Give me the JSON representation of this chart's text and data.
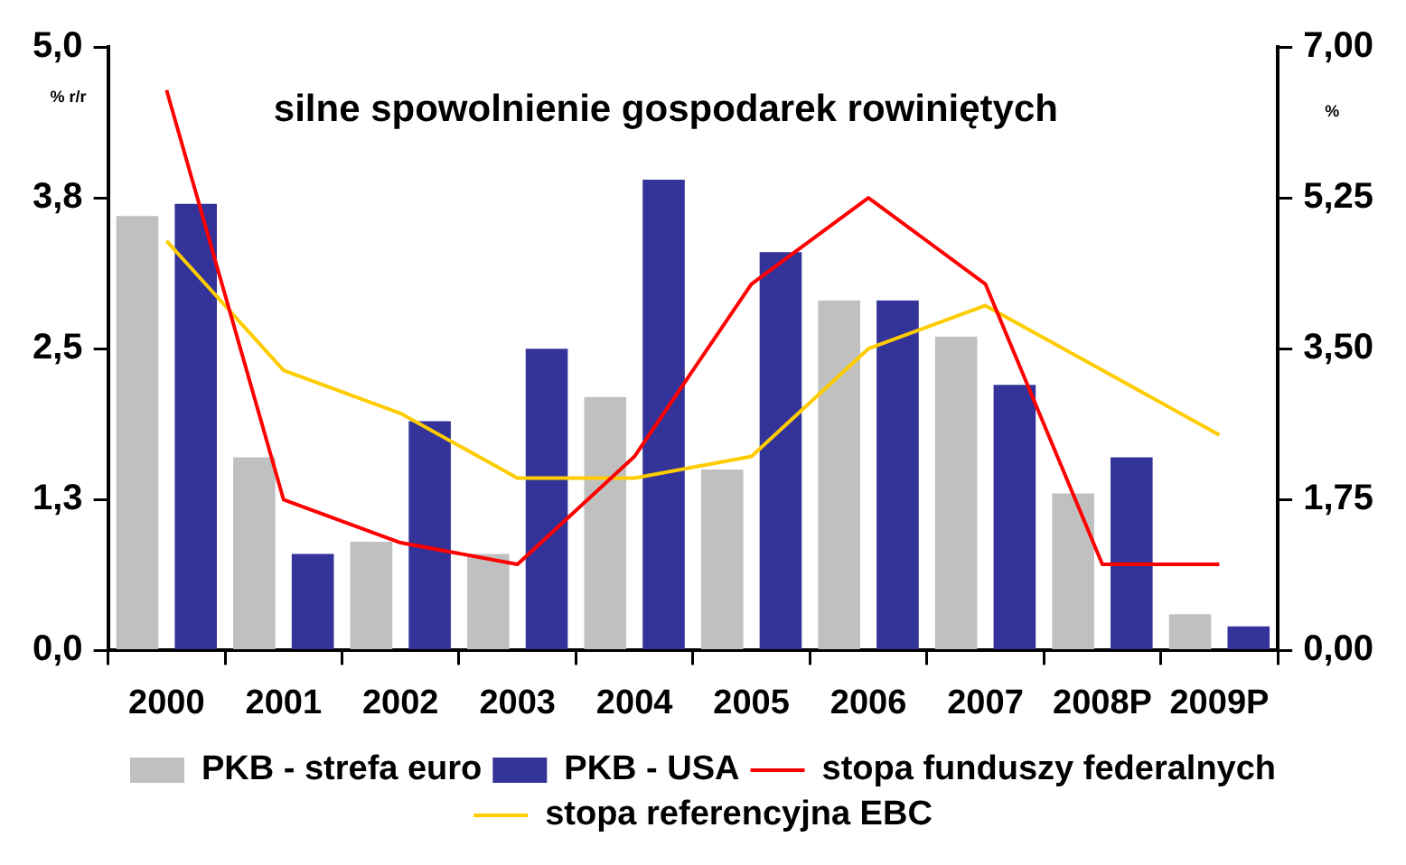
{
  "chart_data": {
    "type": "bar",
    "title": "silne spowolnienie gospodarek rowiniętych",
    "ylabel": "% r/r",
    "y2label": "%",
    "categories": [
      "2000",
      "2001",
      "2002",
      "2003",
      "2004",
      "2005",
      "2006",
      "2007",
      "2008P",
      "2009P"
    ],
    "series": [
      {
        "name": "PKB - strefa euro",
        "color": "#c0c0c0",
        "values": [
          3.6,
          1.6,
          0.9,
          0.8,
          2.1,
          1.5,
          2.9,
          2.6,
          1.3,
          0.3
        ]
      },
      {
        "name": "PKB - USA",
        "color": "#333399",
        "values": [
          3.7,
          0.8,
          1.9,
          2.5,
          3.9,
          3.3,
          2.9,
          2.2,
          1.6,
          0.2
        ]
      },
      {
        "name": "stopa funduszy federalnych",
        "type": "line",
        "axis": "y2",
        "color": "#ff0000",
        "values": [
          6.5,
          1.75,
          1.25,
          1.0,
          2.25,
          4.25,
          5.25,
          4.25,
          1.0,
          1.0
        ]
      },
      {
        "name": "stopa referencyjna EBC",
        "type": "line",
        "axis": "y2",
        "color": "#ffcc00",
        "values": [
          4.75,
          3.25,
          2.75,
          2.0,
          2.0,
          2.25,
          3.5,
          4.0,
          3.25,
          2.5
        ]
      }
    ],
    "ylim": [
      0,
      5
    ],
    "yticks": [
      {
        "value": 0,
        "label": "0,0"
      },
      {
        "value": 1.25,
        "label": "1,3"
      },
      {
        "value": 2.5,
        "label": "2,5"
      },
      {
        "value": 3.75,
        "label": "3,8"
      },
      {
        "value": 5,
        "label": "5,0"
      }
    ],
    "y2lim": [
      0,
      7
    ],
    "y2ticks": [
      {
        "value": 0,
        "label": "0,00"
      },
      {
        "value": 1.75,
        "label": "1,75"
      },
      {
        "value": 3.5,
        "label": "3,50"
      },
      {
        "value": 5.25,
        "label": "5,25"
      },
      {
        "value": 7,
        "label": "7,00"
      }
    ],
    "grid": false,
    "legend": "bottom",
    "marker": "none",
    "line_style": "solid"
  }
}
